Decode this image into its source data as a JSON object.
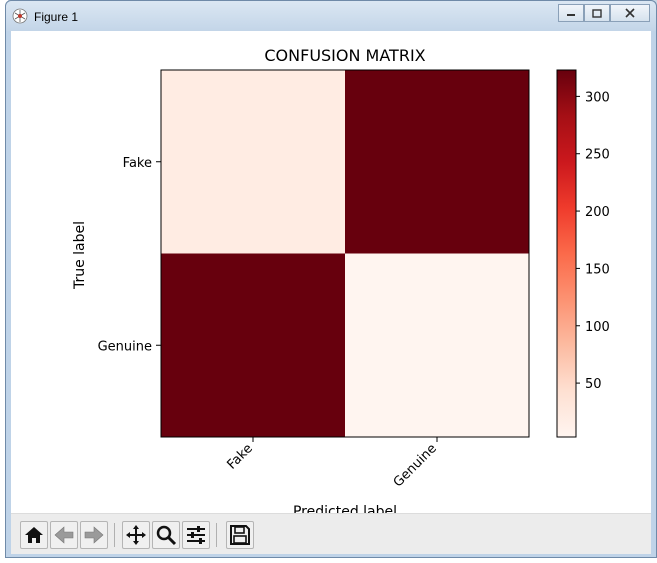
{
  "window": {
    "title": "Figure 1",
    "controls": [
      "minimize",
      "maximize",
      "close"
    ]
  },
  "toolbar": {
    "buttons": [
      {
        "name": "home",
        "icon": "home-icon"
      },
      {
        "name": "back",
        "icon": "back-arrow-icon"
      },
      {
        "name": "forward",
        "icon": "forward-arrow-icon"
      },
      {
        "name": "pan",
        "icon": "move-arrows-icon"
      },
      {
        "name": "zoom",
        "icon": "magnifier-icon"
      },
      {
        "name": "configure-subplots",
        "icon": "sliders-icon"
      },
      {
        "name": "save",
        "icon": "floppy-disk-icon"
      }
    ]
  },
  "chart_data": {
    "type": "heatmap",
    "title": "CONFUSION MATRIX",
    "xlabel": "Predicted label",
    "ylabel": "True label",
    "x_categories": [
      "Fake",
      "Genuine"
    ],
    "y_categories": [
      "Fake",
      "Genuine"
    ],
    "values": [
      [
        20,
        323
      ],
      [
        323,
        3
      ]
    ],
    "colormap": "Reds",
    "colors": {
      "low": "#fff5f0",
      "high": "#67000d"
    },
    "colorbar": {
      "min": 3,
      "max": 323,
      "ticks": [
        50,
        100,
        150,
        200,
        250,
        300
      ]
    }
  }
}
